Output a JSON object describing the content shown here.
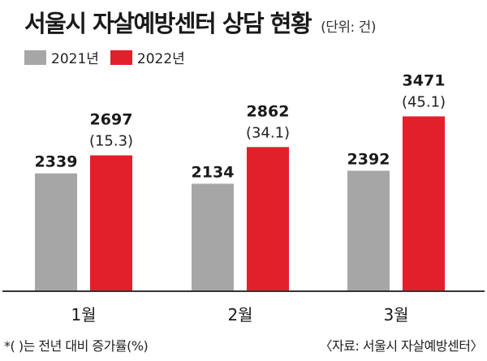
{
  "title": "서울시 자살예방센터 상담 현황",
  "unit": "(단위: 건)",
  "note": "*(   )는 전년 대비 증가률(%)",
  "source": "〈자료: 서울시 자살예방센터〉",
  "colors": {
    "y2021": "#a6a6a6",
    "y2022": "#e2202b",
    "baseline": "#333333"
  },
  "chart_data": {
    "type": "bar",
    "title": "서울시 자살예방센터 상담 현황",
    "unit": "건",
    "categories": [
      "1월",
      "2월",
      "3월"
    ],
    "series": [
      {
        "name": "2021년",
        "values": [
          2339,
          2134,
          2392
        ]
      },
      {
        "name": "2022년",
        "values": [
          2697,
          2862,
          3471
        ]
      }
    ],
    "growth_labels": [
      "(15.3)",
      "(34.1)",
      "(45.1)"
    ],
    "grid": false,
    "legend_position": "top-left"
  }
}
